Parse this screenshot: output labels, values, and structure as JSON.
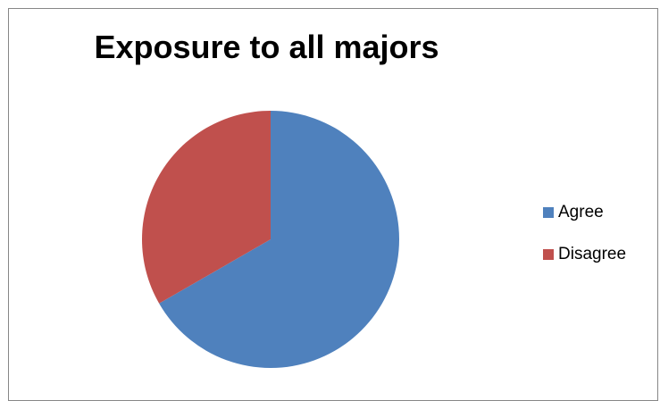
{
  "chart_data": {
    "type": "pie",
    "title": "Exposure to all majors",
    "categories": [
      "Agree",
      "Disagree"
    ],
    "values": [
      66.7,
      33.3
    ],
    "colors": [
      "#4F81BD",
      "#C0504D"
    ],
    "legend_position": "right",
    "start_angle": "12 o'clock",
    "direction": "clockwise"
  }
}
